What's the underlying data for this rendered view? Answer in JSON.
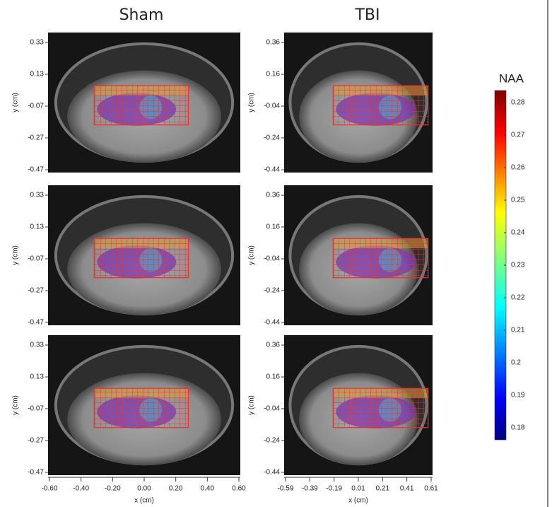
{
  "columns": [
    {
      "title": "Sham",
      "yticks": [
        "0.33",
        "0.13",
        "-0.07",
        "-0.27",
        "-0.47"
      ],
      "xticks": [
        "-0.60",
        "-0.40",
        "-0.20",
        "0.00",
        "0.20",
        "0.40",
        "0.60"
      ]
    },
    {
      "title": "TBI",
      "yticks": [
        "0.36",
        "0.16",
        "-0.04",
        "-0.24",
        "-0.44"
      ],
      "xticks": [
        "-0.59",
        "-0.39",
        "-0.19",
        "0.01",
        "0.21",
        "0.41",
        "0.61"
      ]
    }
  ],
  "y_label": "y (cm)",
  "x_label": "x (cm)",
  "colorbar": {
    "label": "NAA",
    "ticks": [
      "0.28",
      "0.27",
      "0.26",
      "0.25",
      "0.24",
      "0.23",
      "0.22",
      "0.21",
      "0.2",
      "0.19",
      "0.18"
    ]
  }
}
